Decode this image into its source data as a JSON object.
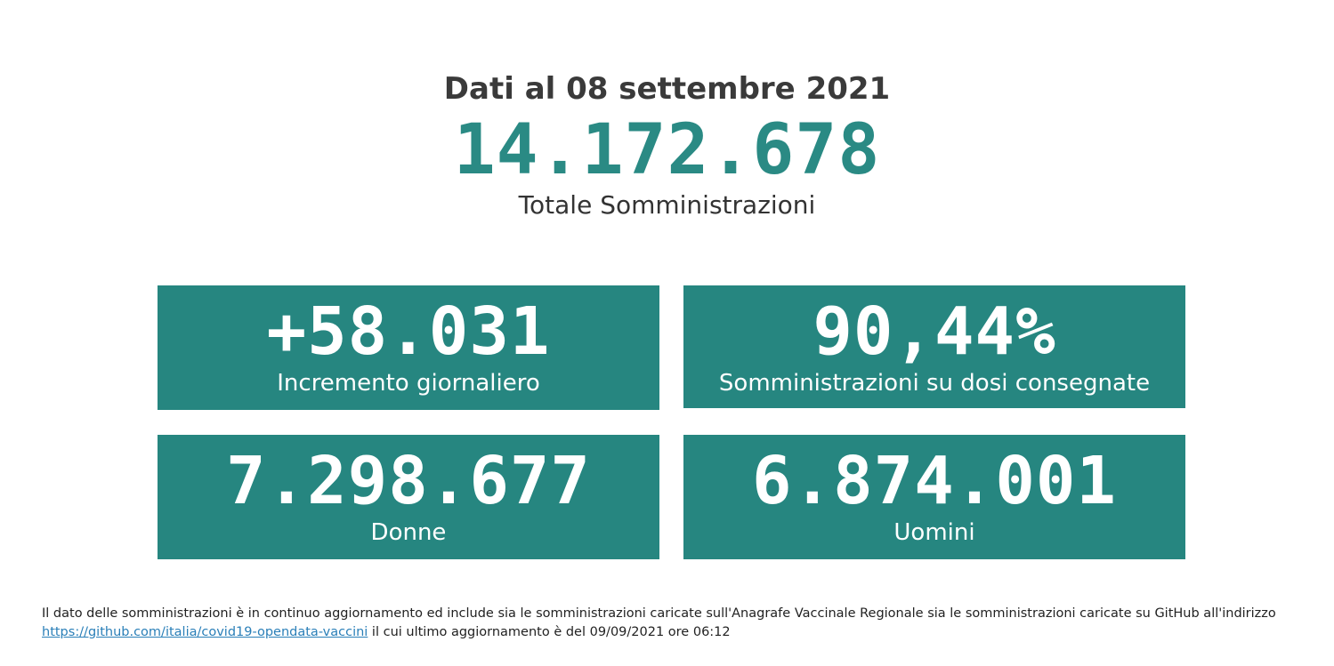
{
  "header": {
    "date_line": "Dati al 08 settembre 2021",
    "total_value": "14.172.678",
    "total_label": "Totale Somministrazioni"
  },
  "cards": [
    {
      "value": "+58.031",
      "label": "Incremento giornaliero"
    },
    {
      "value": "90,44%",
      "label": "Somministrazioni su dosi consegnate"
    },
    {
      "value": "7.298.677",
      "label": "Donne"
    },
    {
      "value": "6.874.001",
      "label": "Uomini"
    }
  ],
  "footnote": {
    "text_before": "Il dato delle somministrazioni è in continuo aggiornamento ed include sia le somministrazioni caricate sull'Anagrafe Vaccinale Regionale sia le somministrazioni caricate su GitHub all'indirizzo",
    "link_text": "https://github.com/italia/covid19-opendata-vaccini",
    "text_after": " il cui ultimo aggiornamento è del 09/09/2021 ore 06:12"
  },
  "colors": {
    "accent": "#2a8a84",
    "card_background": "#268680",
    "link": "#2a7fb8"
  }
}
